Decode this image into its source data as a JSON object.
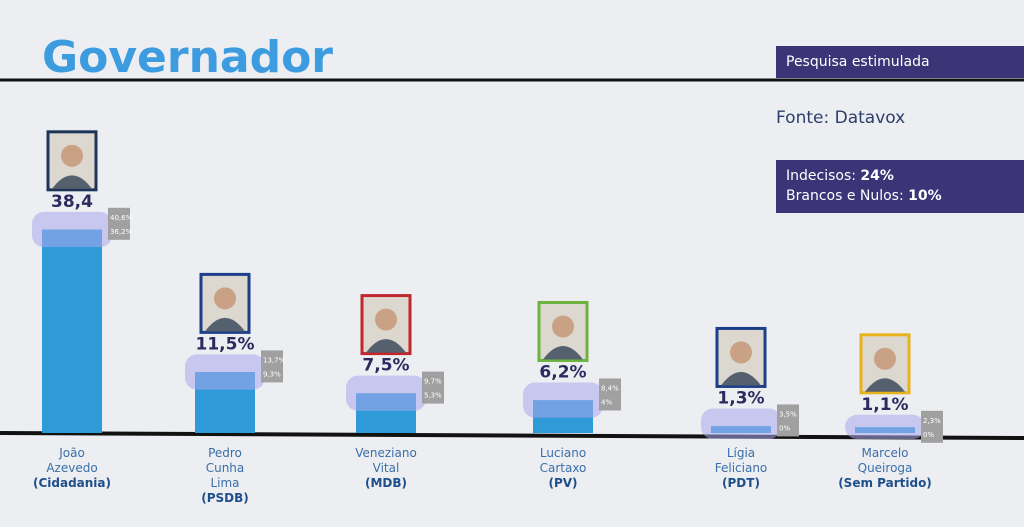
{
  "chart_data": {
    "type": "bar",
    "title": "Governador",
    "subtitle": "Pesquisa estimulada",
    "source": "Fonte: Datavox",
    "notes": [
      {
        "label": "Indecisos:",
        "value": "24%"
      },
      {
        "label": "Brancos e Nulos:",
        "value": "10%"
      }
    ],
    "categories": [
      "João Azevedo",
      "Pedro Cunha Lima",
      "Veneziano Vital",
      "Luciano Cartaxo",
      "Lígia Feliciano",
      "Marcelo Queiroga"
    ],
    "parties": [
      "(Cidadania)",
      "(PSDB)",
      "(MDB)",
      "(PV)",
      "(PDT)",
      "(Sem Partido)"
    ],
    "values": [
      38.4,
      11.5,
      7.5,
      6.2,
      1.3,
      1.1
    ],
    "value_labels": [
      "38,4",
      "11,5%",
      "7,5%",
      "6,2%",
      "1,3%",
      "1,1%"
    ],
    "upper": [
      40.6,
      13.7,
      9.7,
      8.4,
      3.5,
      2.3
    ],
    "upper_labels": [
      "40,6%",
      "13,7%",
      "9,7%",
      "8,4%",
      "3,5%",
      "2,3%"
    ],
    "lower": [
      36.2,
      9.3,
      5.3,
      4,
      0,
      0
    ],
    "lower_labels": [
      "36,2%",
      "9,3%",
      "5,3%",
      "4%",
      "0%",
      "0%"
    ],
    "color": "#2f9ad8"
  }
}
